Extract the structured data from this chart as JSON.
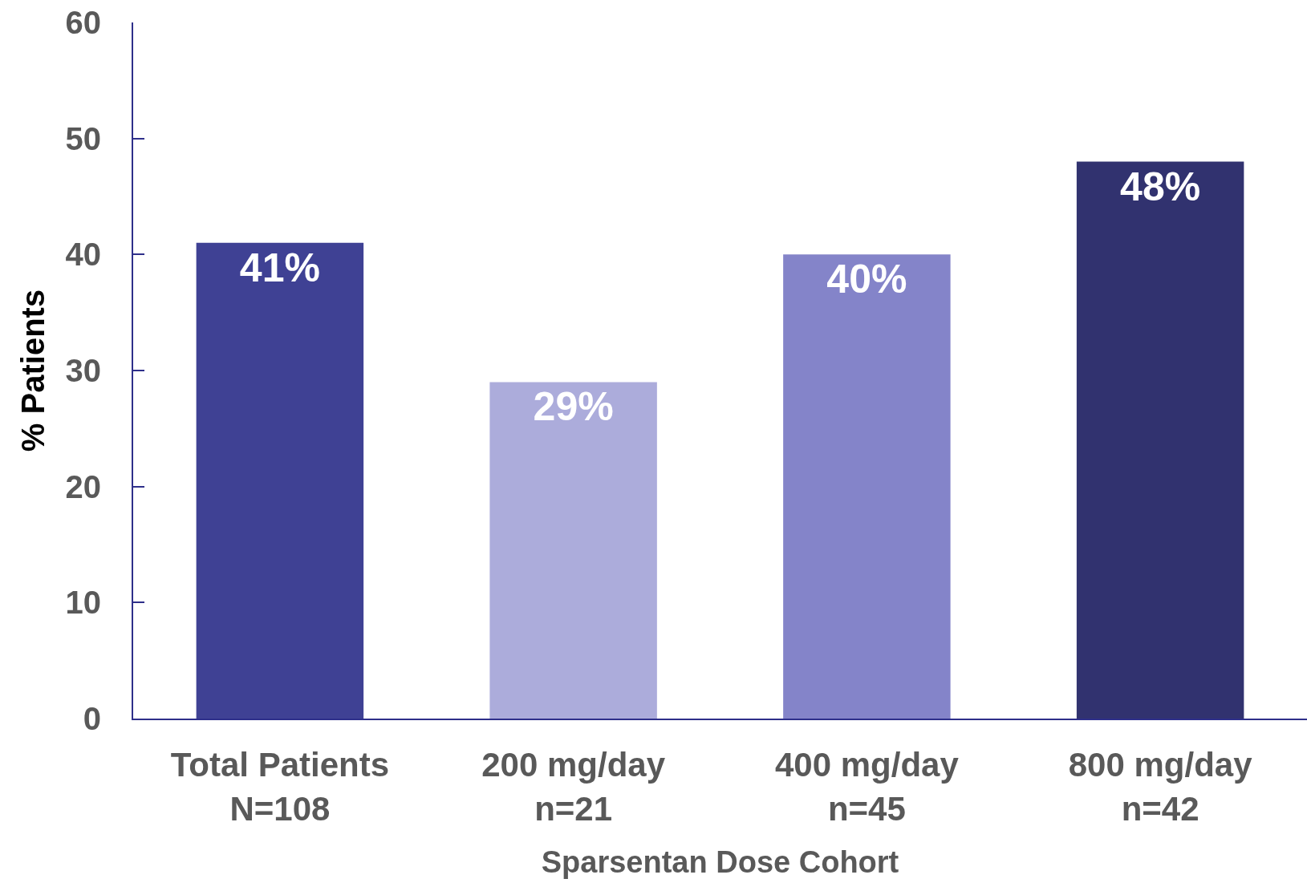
{
  "chart_data": {
    "type": "bar",
    "xlabel": "Sparsentan Dose Cohort",
    "ylabel": "% Patients",
    "categories": [
      "Total Patients\nN=108",
      "200 mg/day\nn=21",
      "400 mg/day\nn=45",
      "800 mg/day\nn=42"
    ],
    "values": [
      41,
      29,
      40,
      48
    ],
    "colors": [
      "#3f4194",
      "#acacdb",
      "#8484c9",
      "#31326f"
    ],
    "value_labels": [
      "41%",
      "29%",
      "40%",
      "48%"
    ],
    "ylim": [
      0,
      60
    ],
    "yticks": [
      0,
      10,
      20,
      30,
      40,
      50,
      60
    ],
    "grid": false
  }
}
